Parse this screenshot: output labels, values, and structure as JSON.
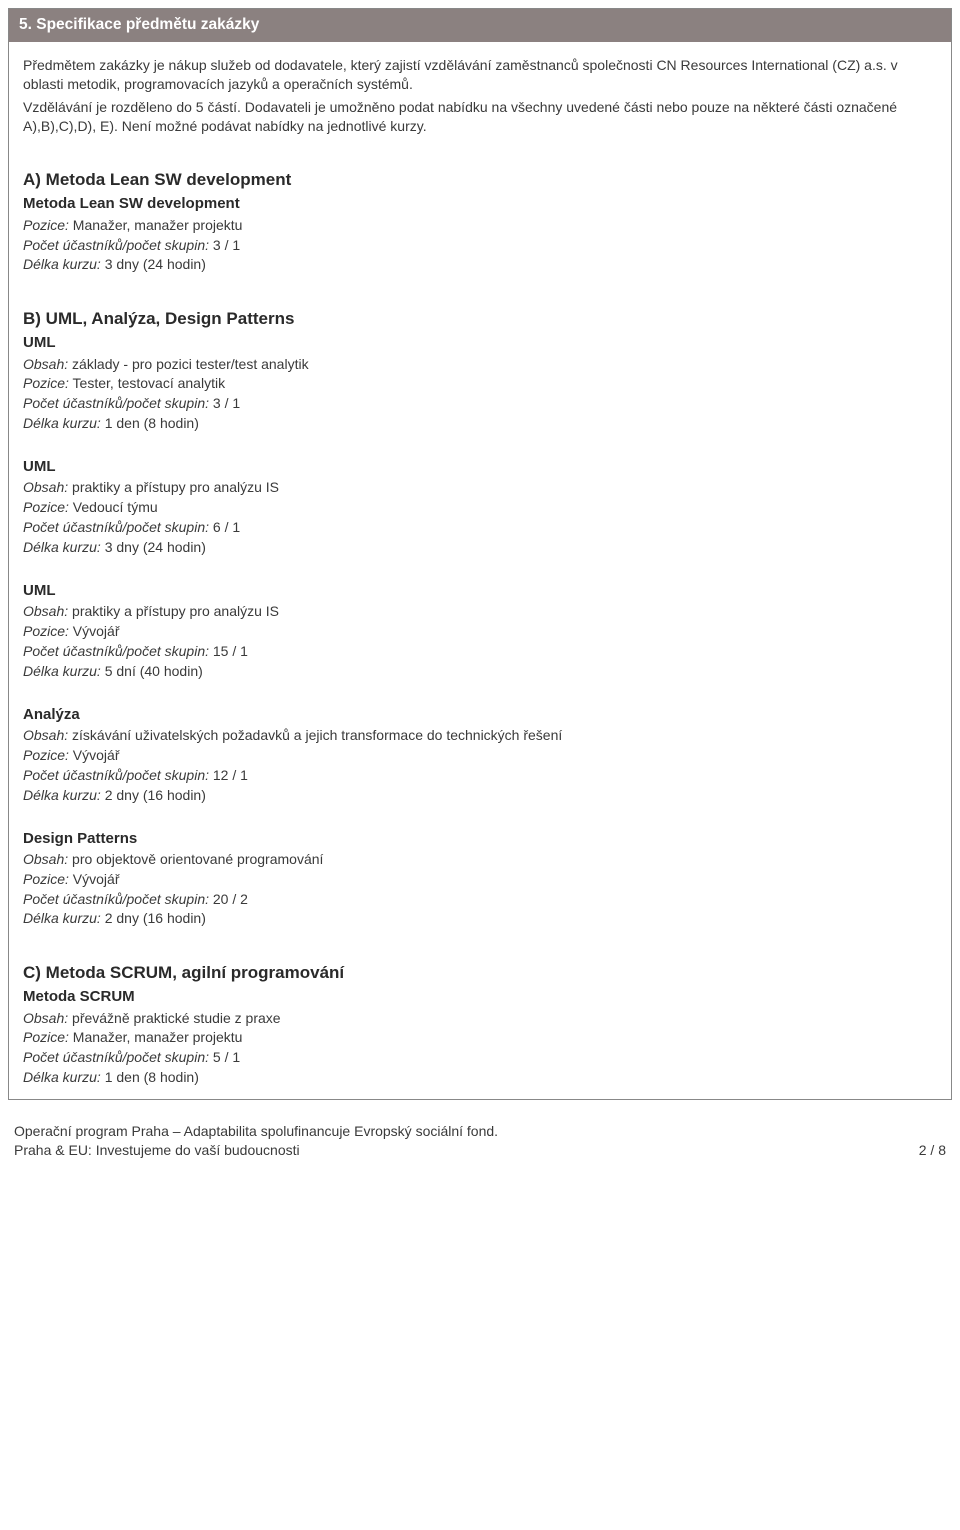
{
  "section_header": "5. Specifikace předmětu zakázky",
  "intro": {
    "p1": "Předmětem zakázky je nákup služeb od dodavatele, který zajistí vzdělávání zaměstnanců společnosti CN Resources International (CZ) a.s. v oblasti metodik, programovacích jazyků a operačních systémů.",
    "p2": "Vzdělávání je rozděleno do 5 částí. Dodavateli je umožněno podat nabídku na všechny uvedené části nebo pouze na některé části označené A),B),C),D), E). Není možné podávat nabídky na jednotlivé kurzy."
  },
  "groups": [
    {
      "title": "A) Metoda Lean SW development",
      "items": [
        {
          "subtitle": "Metoda Lean SW development",
          "pozice_label": "Pozice:",
          "pozice_value": " Manažer, manažer projektu",
          "pocet_label": "Počet účastníků/počet skupin:",
          "pocet_value": " 3  / 1",
          "delka_label": "Délka kurzu:",
          "delka_value": " 3 dny (24 hodin)"
        }
      ]
    },
    {
      "title": "B) UML, Analýza, Design Patterns",
      "items": [
        {
          "subtitle": "UML",
          "obsah_label": "Obsah:",
          "obsah_value": " základy - pro pozici tester/test analytik",
          "pozice_label": "Pozice:",
          "pozice_value": " Tester, testovací analytik",
          "pocet_label": "Počet účastníků/počet skupin:",
          "pocet_value": " 3  / 1",
          "delka_label": "Délka kurzu:",
          "delka_value": " 1 den (8 hodin)"
        },
        {
          "subtitle": "UML",
          "obsah_label": "Obsah:",
          "obsah_value": "  praktiky a přístupy pro analýzu IS",
          "pozice_label": "Pozice:",
          "pozice_value": " Vedoucí týmu",
          "pocet_label": "Počet účastníků/počet skupin:",
          "pocet_value": " 6  / 1",
          "delka_label": "Délka kurzu:",
          "delka_value": " 3 dny (24 hodin)"
        },
        {
          "subtitle": "UML",
          "obsah_label": "Obsah:",
          "obsah_value": "  praktiky a přístupy pro analýzu IS",
          "pozice_label": "Pozice:",
          "pozice_value": " Vývojář",
          "pocet_label": "Počet účastníků/počet skupin:",
          "pocet_value": " 15  / 1",
          "delka_label": "Délka kurzu:",
          "delka_value": " 5 dní (40 hodin)"
        },
        {
          "subtitle": "Analýza",
          "obsah_label": "Obsah:",
          "obsah_value": " získávání uživatelských požadavků a jejich transformace do technických řešení",
          "pozice_label": "Pozice:",
          "pozice_value": " Vývojář",
          "pocet_label": "Počet účastníků/počet skupin:",
          "pocet_value": " 12  / 1",
          "delka_label": "Délka kurzu:",
          "delka_value": " 2 dny (16 hodin)"
        },
        {
          "subtitle": "Design Patterns",
          "obsah_label": "Obsah:",
          "obsah_value": " pro objektově orientované programování",
          "pozice_label": "Pozice:",
          "pozice_value": " Vývojář",
          "pocet_label": "Počet účastníků/počet skupin:",
          "pocet_value": " 20  / 2",
          "delka_label": "Délka kurzu:",
          "delka_value": " 2 dny (16 hodin)"
        }
      ]
    },
    {
      "title": "C) Metoda SCRUM, agilní programování",
      "items": [
        {
          "subtitle": "Metoda SCRUM",
          "obsah_label": "Obsah:",
          "obsah_value": " převážně praktické studie z praxe",
          "pozice_label": "Pozice:",
          "pozice_value": " Manažer, manažer projektu",
          "pocet_label": "Počet účastníků/počet skupin:",
          "pocet_value": " 5  / 1",
          "delka_label": "Délka kurzu:",
          "delka_value": " 1 den (8 hodin)"
        }
      ]
    }
  ],
  "footer": {
    "line1": "Operační program Praha – Adaptabilita spolufinancuje Evropský sociální fond.",
    "line2": "Praha & EU: Investujeme do vaší budoucnosti",
    "page": "2 / 8"
  }
}
